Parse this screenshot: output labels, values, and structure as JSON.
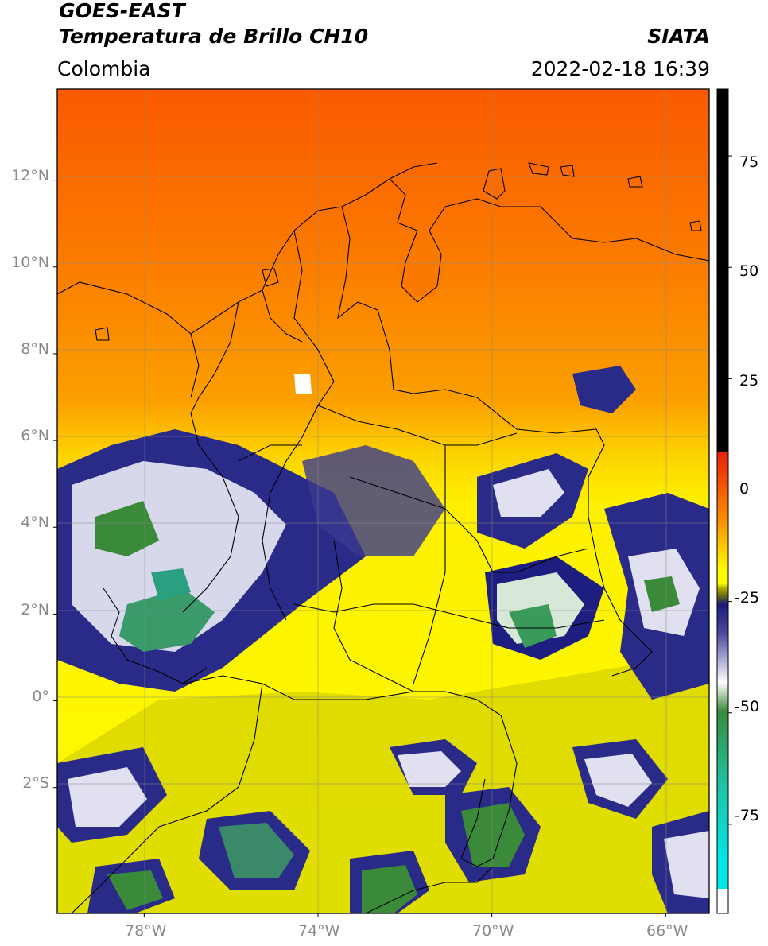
{
  "header": {
    "satellite": "GOES-EAST",
    "product": "Temperatura de Brillo CH10",
    "region": "Colombia",
    "agency": "SIATA",
    "datetime": "2022-02-18 16:39"
  },
  "map": {
    "lat_labels": [
      "12°N",
      "10°N",
      "8°N",
      "6°N",
      "4°N",
      "2°N",
      "0°",
      "2°S"
    ],
    "lon_labels": [
      "78°W",
      "74°W",
      "70°W",
      "66°W"
    ],
    "lat_values": [
      12,
      10,
      8,
      6,
      4,
      2,
      0,
      -2
    ],
    "lon_values": [
      -78,
      -74,
      -70,
      -66
    ],
    "extent": {
      "lon_min": -80.0,
      "lon_max": -65.0,
      "lat_min": -4.9,
      "lat_max": 14.1
    }
  },
  "colorbar": {
    "labels": [
      "75",
      "50",
      "25",
      "0",
      "-25",
      "-50",
      "-75"
    ],
    "values": [
      75,
      50,
      25,
      0,
      -25,
      -50,
      -75
    ],
    "range": [
      -95,
      90
    ],
    "colors": {
      "black": "#000000",
      "red": "#e8200a",
      "orange": "#fa8a00",
      "yellow": "#fdfd00",
      "olive": "#b4b000",
      "navy": "#1a1a7a",
      "white": "#ffffff",
      "green": "#3a8a3a",
      "teal": "#20c0a0",
      "cyan": "#00e6e6"
    }
  }
}
